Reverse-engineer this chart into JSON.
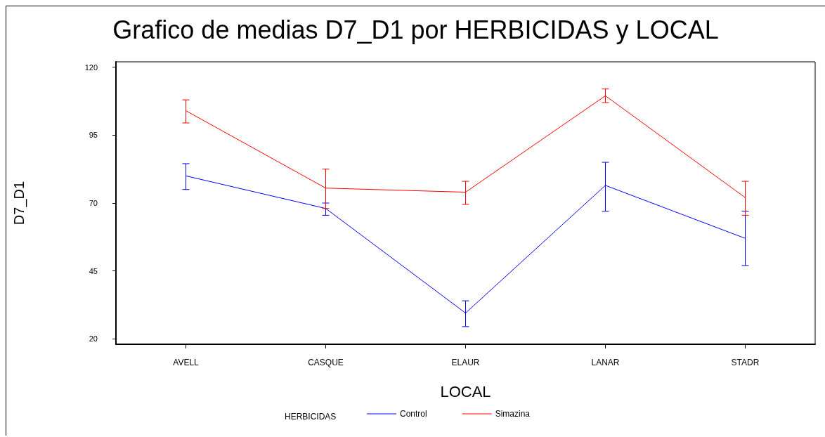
{
  "chart_data": {
    "type": "line",
    "title": "Grafico de medias D7_D1 por HERBICIDAS y LOCAL",
    "xlabel": "LOCAL",
    "ylabel": "D7_D1",
    "legend_title": "HERBICIDAS",
    "categories": [
      "AVELL",
      "CASQUE",
      "ELAUR",
      "LANAR",
      "STADR"
    ],
    "series": [
      {
        "name": "Control",
        "color": "#0000ff",
        "values": [
          80,
          68,
          29.5,
          76.5,
          57
        ],
        "errors": [
          [
            75,
            84.5
          ],
          [
            65.5,
            70
          ],
          [
            24.5,
            34
          ],
          [
            67,
            85
          ],
          [
            47,
            67
          ]
        ]
      },
      {
        "name": "Simazina",
        "color": "#ff0000",
        "values": [
          104,
          75.5,
          74,
          109.5,
          72
        ],
        "errors": [
          [
            99.5,
            108
          ],
          [
            68,
            82.5
          ],
          [
            69.5,
            78
          ],
          [
            107,
            112
          ],
          [
            65.5,
            78
          ]
        ]
      }
    ],
    "ylim": [
      18,
      122
    ],
    "yticks": [
      20,
      45,
      70,
      95,
      120
    ],
    "grid": false,
    "legend": "bottom",
    "marker": "none",
    "line_style": "solid"
  }
}
